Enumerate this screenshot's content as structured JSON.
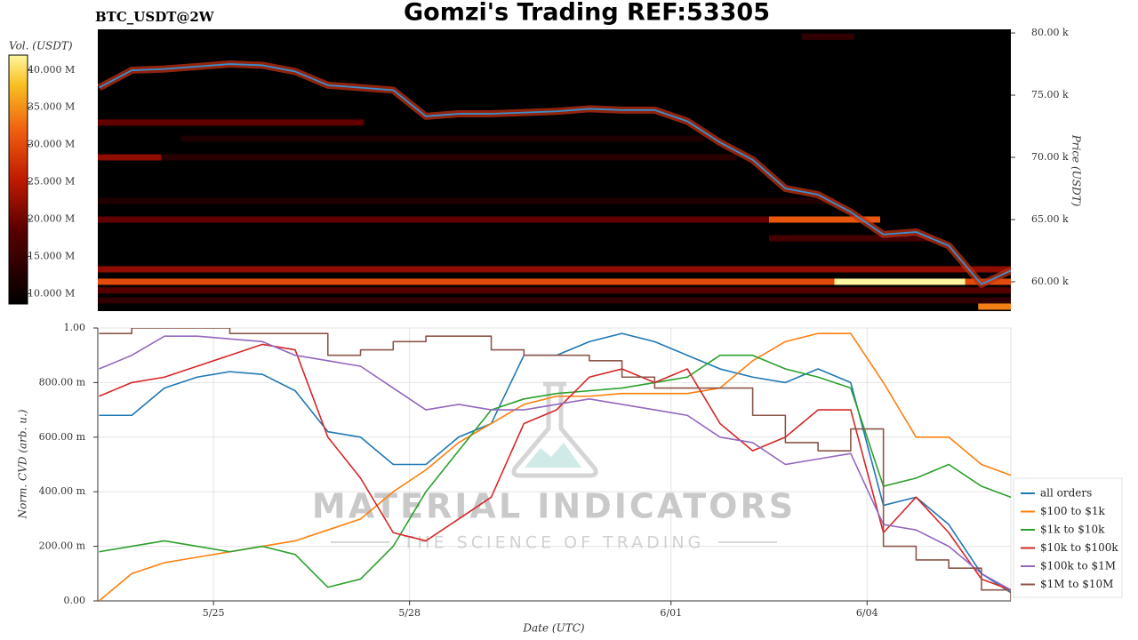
{
  "header": {
    "title": "Gomzi's Trading REF:53305"
  },
  "watermark": {
    "brand": "MATERIAL INDICATORS",
    "tagline": "THE SCIENCE OF TRADING"
  },
  "chart_data": [
    {
      "type": "heatmap",
      "title": "BTC_USDT@2W",
      "y_label": "Price (USDT)",
      "x": [
        -1.75,
        -1.25,
        -0.75,
        -0.25,
        0.25,
        0.75,
        1.25,
        1.75,
        2.25,
        2.75,
        3.25,
        3.75,
        4.25,
        4.75,
        5.25,
        5.75,
        6.25,
        6.75,
        7.25,
        7.75,
        8.25,
        8.75,
        9.25,
        9.75,
        10.25,
        10.75,
        11.25,
        11.75,
        12.2
      ],
      "values": [
        75600,
        77000,
        77100,
        77300,
        77500,
        77400,
        76900,
        75800,
        75600,
        75400,
        73300,
        73500,
        73500,
        73600,
        73700,
        73900,
        73800,
        73800,
        72900,
        71200,
        69800,
        67500,
        67000,
        65600,
        63800,
        64000,
        62900,
        59800,
        60900
      ],
      "color": "#3a8fd0",
      "xlim": [
        -1.77,
        12.2
      ],
      "ylim": [
        57640,
        80290
      ],
      "yticks": [
        {
          "value": 60000,
          "label": "60.00 k"
        },
        {
          "value": 65000,
          "label": "65.00 k"
        },
        {
          "value": 70000,
          "label": "70.00 k"
        },
        {
          "value": 75000,
          "label": "75.00 k"
        },
        {
          "value": 80000,
          "label": "80.00 k"
        }
      ],
      "bands": [
        {
          "price": 60000,
          "x0": -1.77,
          "x1": 12.2,
          "volume": 30000000
        },
        {
          "price": 60000,
          "x0": 9.5,
          "x1": 11.5,
          "volume": 42000000
        },
        {
          "price": 61000,
          "x0": -1.77,
          "x1": 12.2,
          "volume": 22000000
        },
        {
          "price": 59300,
          "x0": -1.77,
          "x1": 12.2,
          "volume": 18000000
        },
        {
          "price": 58500,
          "x0": -1.77,
          "x1": 12.2,
          "volume": 14000000
        },
        {
          "price": 58000,
          "x0": 11.7,
          "x1": 12.2,
          "volume": 34000000
        },
        {
          "price": 65000,
          "x0": -1.77,
          "x1": 8.5,
          "volume": 19000000
        },
        {
          "price": 65000,
          "x0": 8.5,
          "x1": 10.2,
          "volume": 31000000
        },
        {
          "price": 70000,
          "x0": -1.77,
          "x1": -0.8,
          "volume": 22000000
        },
        {
          "price": 70000,
          "x0": -0.8,
          "x1": 8.0,
          "volume": 13000000
        },
        {
          "price": 72800,
          "x0": -1.77,
          "x1": 2.3,
          "volume": 19000000
        },
        {
          "price": 71500,
          "x0": -0.5,
          "x1": 7.5,
          "volume": 12000000
        },
        {
          "price": 66500,
          "x0": -1.77,
          "x1": 9.5,
          "volume": 12000000
        },
        {
          "price": 79700,
          "x0": 9.0,
          "x1": 9.8,
          "volume": 14000000
        },
        {
          "price": 63500,
          "x0": 8.5,
          "x1": 11.0,
          "volume": 16000000
        }
      ],
      "colorbar": {
        "label": "Vol. (USDT)",
        "lim": [
          8600000,
          42000000
        ],
        "ticks": [
          {
            "value": 10000000,
            "label": "10.000 M"
          },
          {
            "value": 15000000,
            "label": "15.000 M"
          },
          {
            "value": 20000000,
            "label": "20.000 M"
          },
          {
            "value": 25000000,
            "label": "25.000 M"
          },
          {
            "value": 30000000,
            "label": "30.000 M"
          },
          {
            "value": 35000000,
            "label": "35.000 M"
          },
          {
            "value": 40000000,
            "label": "40.000 M"
          }
        ]
      }
    },
    {
      "type": "line",
      "x_label": "Date (UTC)",
      "y_label": "Norm. CVD (arb. u.)",
      "grid": true,
      "legend": "right",
      "x": [
        -1.75,
        -1.25,
        -0.75,
        -0.25,
        0.25,
        0.75,
        1.25,
        1.75,
        2.25,
        2.75,
        3.25,
        3.75,
        4.25,
        4.75,
        5.25,
        5.75,
        6.25,
        6.75,
        7.25,
        7.75,
        8.25,
        8.75,
        9.25,
        9.75,
        10.25,
        10.75,
        11.25,
        11.75,
        12.2
      ],
      "xlim": [
        -1.77,
        12.2
      ],
      "xticks": [
        {
          "value": 0,
          "label": "5/25"
        },
        {
          "value": 3,
          "label": "5/28"
        },
        {
          "value": 7,
          "label": "6/01"
        },
        {
          "value": 10,
          "label": "6/04"
        }
      ],
      "ylim": [
        0,
        1
      ],
      "yticks": [
        {
          "value": 0,
          "label": "0.00"
        },
        {
          "value": 0.2,
          "label": "200.00 m"
        },
        {
          "value": 0.4,
          "label": "400.00 m"
        },
        {
          "value": 0.6,
          "label": "600.00 m"
        },
        {
          "value": 0.8,
          "label": "800.00 m"
        },
        {
          "value": 1,
          "label": "1.00"
        }
      ],
      "series": [
        {
          "name": "all orders",
          "color": "#1f77b4",
          "values": [
            0.68,
            0.68,
            0.78,
            0.82,
            0.84,
            0.83,
            0.77,
            0.62,
            0.6,
            0.5,
            0.5,
            0.6,
            0.65,
            0.9,
            0.9,
            0.95,
            0.98,
            0.95,
            0.9,
            0.85,
            0.82,
            0.8,
            0.85,
            0.8,
            0.35,
            0.38,
            0.28,
            0.1,
            0.03
          ]
        },
        {
          "name": "$100 to $1k",
          "color": "#ff7f0e",
          "values": [
            0.0,
            0.1,
            0.14,
            0.16,
            0.18,
            0.2,
            0.22,
            0.26,
            0.3,
            0.4,
            0.48,
            0.58,
            0.65,
            0.72,
            0.75,
            0.75,
            0.76,
            0.76,
            0.76,
            0.78,
            0.88,
            0.95,
            0.98,
            0.98,
            0.8,
            0.6,
            0.6,
            0.5,
            0.46
          ]
        },
        {
          "name": "$1k to $10k",
          "color": "#2ca02c",
          "values": [
            0.18,
            0.2,
            0.22,
            0.2,
            0.18,
            0.2,
            0.17,
            0.05,
            0.08,
            0.2,
            0.4,
            0.55,
            0.7,
            0.74,
            0.76,
            0.77,
            0.78,
            0.8,
            0.82,
            0.9,
            0.9,
            0.85,
            0.82,
            0.78,
            0.42,
            0.45,
            0.5,
            0.42,
            0.38
          ]
        },
        {
          "name": "$10k to $100k",
          "color": "#d62728",
          "values": [
            0.75,
            0.8,
            0.82,
            0.86,
            0.9,
            0.94,
            0.92,
            0.6,
            0.45,
            0.25,
            0.22,
            0.3,
            0.38,
            0.65,
            0.7,
            0.82,
            0.85,
            0.8,
            0.85,
            0.65,
            0.55,
            0.6,
            0.7,
            0.7,
            0.25,
            0.38,
            0.25,
            0.08,
            0.04
          ]
        },
        {
          "name": "$100k to $1M",
          "color": "#9467bd",
          "values": [
            0.85,
            0.9,
            0.97,
            0.97,
            0.96,
            0.95,
            0.9,
            0.88,
            0.86,
            0.78,
            0.7,
            0.72,
            0.7,
            0.7,
            0.72,
            0.74,
            0.72,
            0.7,
            0.68,
            0.6,
            0.58,
            0.5,
            0.52,
            0.54,
            0.28,
            0.26,
            0.2,
            0.1,
            0.04
          ]
        },
        {
          "name": "$1M to $10M",
          "color": "#8c564b",
          "step": true,
          "values": [
            0.98,
            1.0,
            1.0,
            1.0,
            0.98,
            0.98,
            0.98,
            0.9,
            0.92,
            0.95,
            0.97,
            0.97,
            0.92,
            0.9,
            0.9,
            0.88,
            0.82,
            0.78,
            0.78,
            0.78,
            0.68,
            0.58,
            0.55,
            0.63,
            0.2,
            0.15,
            0.12,
            0.04,
            0.0
          ]
        }
      ]
    }
  ]
}
